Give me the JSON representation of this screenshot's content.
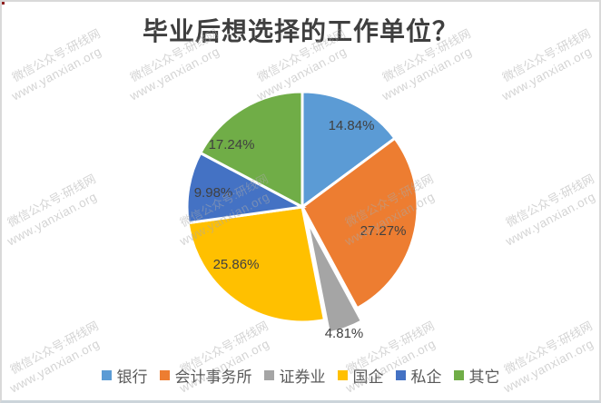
{
  "page": {
    "watermark": {
      "line1": "微信公众号:研线网",
      "line2": "www.yanxian.org"
    }
  },
  "chart_data": {
    "type": "pie",
    "title": "毕业后想选择的工作单位？",
    "categories": [
      "银行",
      "会计事务所",
      "证券业",
      "国企",
      "私企",
      "其它"
    ],
    "values": [
      14.84,
      27.27,
      4.81,
      25.86,
      9.98,
      17.24
    ],
    "value_labels": [
      "14.84%",
      "27.27%",
      "4.81%",
      "25.86%",
      "9.98%",
      "17.24%"
    ],
    "colors": [
      "#5B9BD5",
      "#ED7D31",
      "#A5A5A5",
      "#FFC000",
      "#4472C4",
      "#70AD47"
    ],
    "unit": "%",
    "start_angle_deg": 0,
    "direction": "clockwise",
    "exploded_category": "证券业",
    "legend_position": "bottom",
    "title_color": "#3f3f3f",
    "label_color": "#404040",
    "slice_border_color": "#ffffff"
  }
}
